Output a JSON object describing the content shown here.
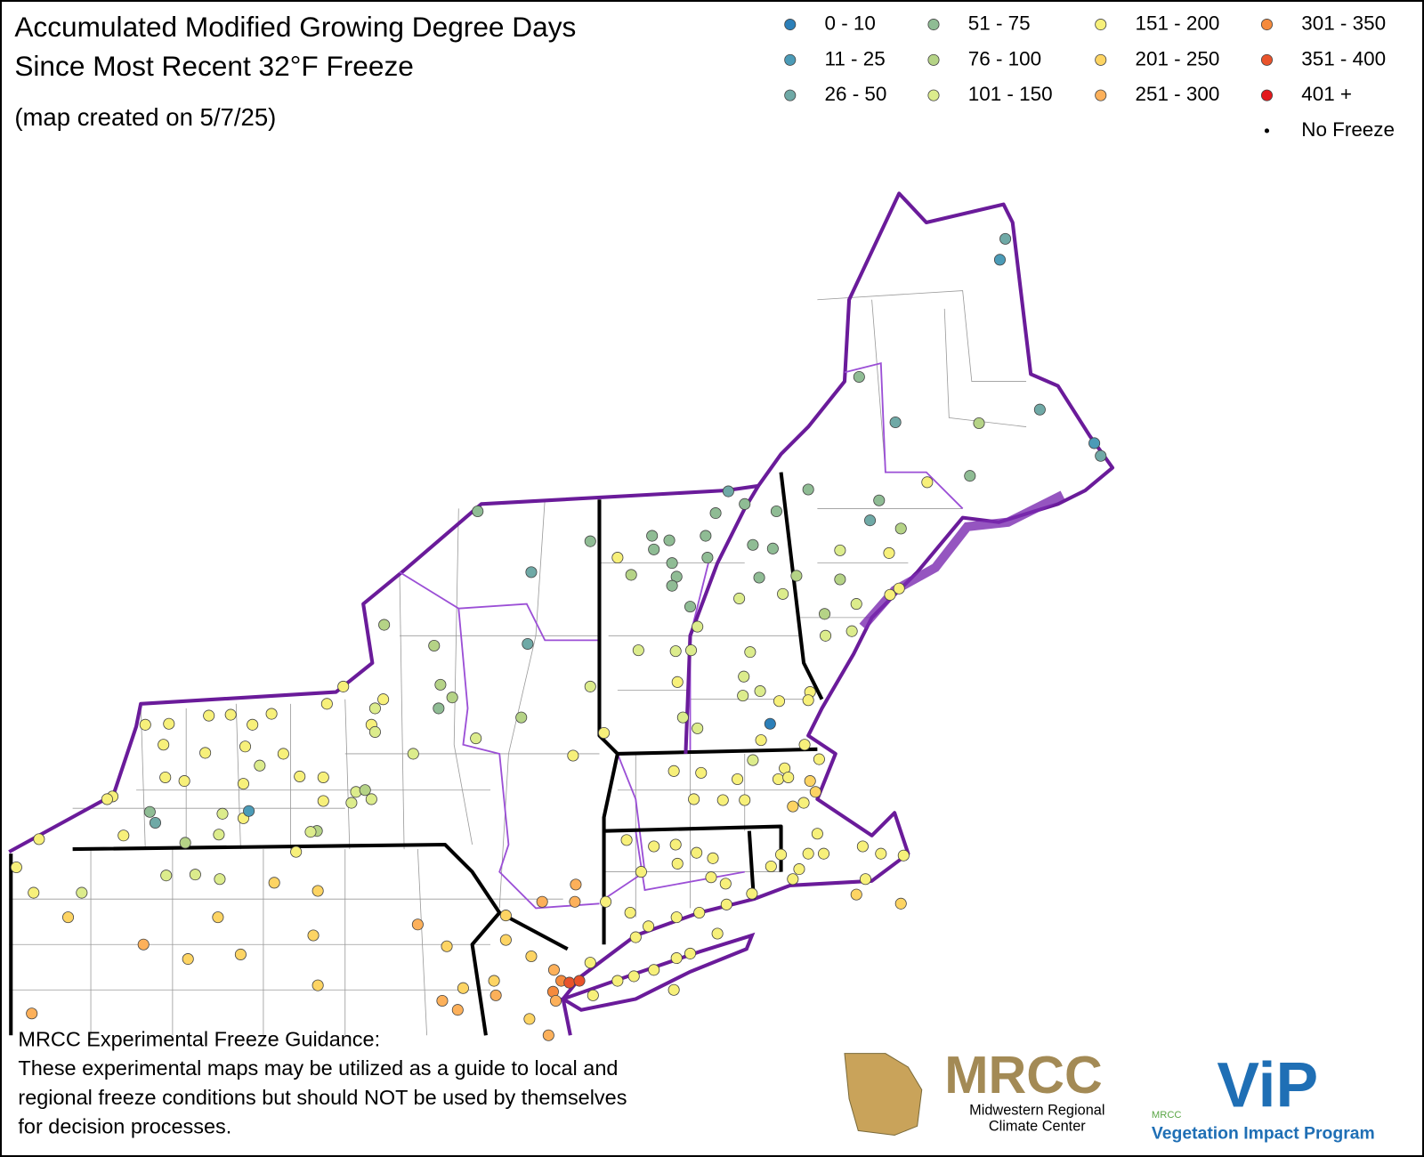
{
  "header": {
    "title_lines": [
      "Accumulated Modified Growing Degree Days",
      "Since Most Recent 32°F Freeze"
    ],
    "subtitle": "(map created on 5/7/25)"
  },
  "legend": {
    "items": [
      {
        "label": "0 - 10",
        "color": "#2c7fb8"
      },
      {
        "label": "11 - 25",
        "color": "#4b9bb7"
      },
      {
        "label": "26 - 50",
        "color": "#6fa9a6"
      },
      {
        "label": "51 - 75",
        "color": "#8fbc94"
      },
      {
        "label": "76 - 100",
        "color": "#b5d386"
      },
      {
        "label": "101 - 150",
        "color": "#dcec8c"
      },
      {
        "label": "151 - 200",
        "color": "#f7f07a"
      },
      {
        "label": "201 - 250",
        "color": "#fdd463"
      },
      {
        "label": "251 - 300",
        "color": "#fcb05a"
      },
      {
        "label": "301 - 350",
        "color": "#f58a3c"
      },
      {
        "label": "351 - 400",
        "color": "#e9532b"
      },
      {
        "label": "401 +",
        "color": "#e3191c"
      },
      {
        "label": "No Freeze",
        "color": "#000000"
      }
    ]
  },
  "footer": {
    "heading": "MRCC Experimental Freeze Guidance:",
    "lines": [
      "These experimental maps may be utilized as a guide to local and",
      "regional freeze conditions but should NOT be used by themselves",
      "for decision processes."
    ]
  },
  "logos": {
    "mrcc": "MRCC",
    "mrcc_sub": [
      "Midwestern Regional",
      "Climate Center"
    ],
    "vip_small": "MRCC",
    "vip": "ViP",
    "vip_sub": "Vegetation Impact Program"
  }
}
